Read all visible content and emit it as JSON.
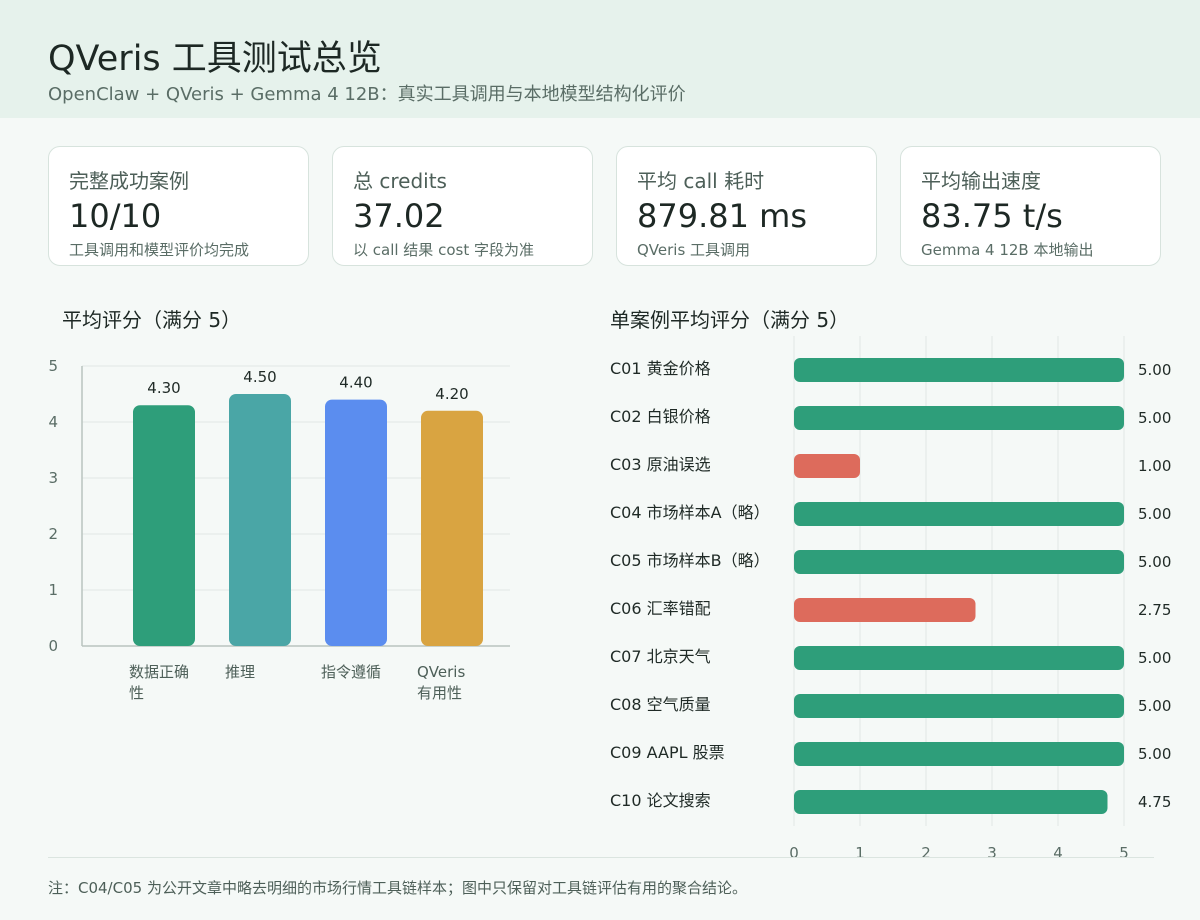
{
  "header": {
    "title": "QVeris 工具测试总览",
    "subtitle": "OpenClaw + QVeris + Gemma 4 12B：真实工具调用与本地模型结构化评价"
  },
  "cards": [
    {
      "label": "完整成功案例",
      "value": "10/10",
      "note": "工具调用和模型评价均完成"
    },
    {
      "label": "总 credits",
      "value": "37.02",
      "note": "以 call 结果 cost 字段为准"
    },
    {
      "label": "平均 call 耗时",
      "value": "879.81 ms",
      "note": "QVeris 工具调用"
    },
    {
      "label": "平均输出速度",
      "value": "83.75 t/s",
      "note": "Gemma 4 12B 本地输出"
    }
  ],
  "colors": {
    "green": "#2e9e7a",
    "teal": "#4aa6a6",
    "blue": "#5b8def",
    "orange": "#d9a441",
    "red": "#dd6b5c"
  },
  "chart_data": [
    {
      "type": "bar",
      "title": "平均评分（满分 5）",
      "categories": [
        "数据正确性",
        "推理",
        "指令遵循",
        "QVeris 有用性"
      ],
      "values": [
        4.3,
        4.5,
        4.4,
        4.2
      ],
      "value_labels": [
        "4.30",
        "4.50",
        "4.40",
        "4.20"
      ],
      "colors": [
        "#2e9e7a",
        "#4aa6a6",
        "#5b8def",
        "#d9a441"
      ],
      "y_ticks": [
        "0",
        "1",
        "2",
        "3",
        "4",
        "5"
      ],
      "ylim": [
        0,
        5
      ],
      "grid": true
    },
    {
      "type": "bar",
      "orientation": "horizontal",
      "title": "单案例平均评分（满分 5）",
      "categories": [
        "C01 黄金价格",
        "C02 白银价格",
        "C03 原油误选",
        "C04 市场样本A（略）",
        "C05 市场样本B（略）",
        "C06 汇率错配",
        "C07 北京天气",
        "C08 空气质量",
        "C09 AAPL 股票",
        "C10 论文搜索"
      ],
      "values": [
        5.0,
        5.0,
        1.0,
        5.0,
        5.0,
        2.75,
        5.0,
        5.0,
        5.0,
        4.75
      ],
      "value_labels": [
        "5.00",
        "5.00",
        "1.00",
        "5.00",
        "5.00",
        "2.75",
        "5.00",
        "5.00",
        "5.00",
        "4.75"
      ],
      "colors": [
        "#2e9e7a",
        "#2e9e7a",
        "#dd6b5c",
        "#2e9e7a",
        "#2e9e7a",
        "#dd6b5c",
        "#2e9e7a",
        "#2e9e7a",
        "#2e9e7a",
        "#2e9e7a"
      ],
      "x_ticks": [
        "0",
        "1",
        "2",
        "3",
        "4",
        "5"
      ],
      "xlim": [
        0,
        5
      ],
      "grid": true
    }
  ],
  "footer": {
    "note": "注：C04/C05 为公开文章中略去明细的市场行情工具链样本；图中只保留对工具链评估有用的聚合结论。"
  }
}
